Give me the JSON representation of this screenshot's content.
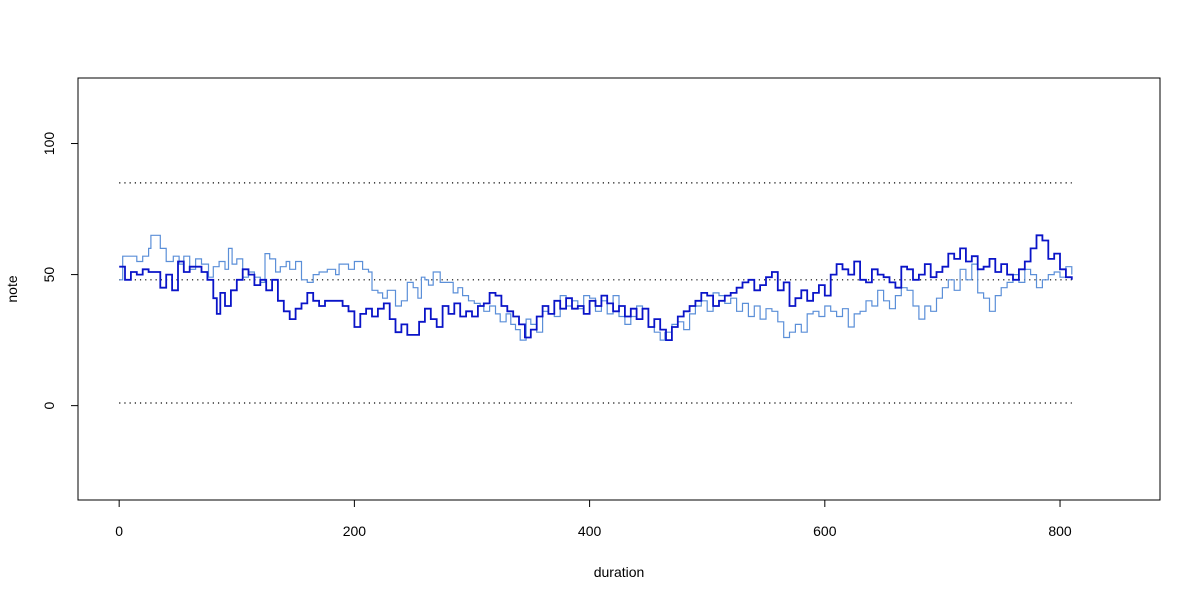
{
  "chart_data": {
    "type": "line",
    "xlabel": "duration",
    "ylabel": "note",
    "xlim": [
      -35,
      885
    ],
    "ylim": [
      -36,
      125
    ],
    "x_ticks": [
      0,
      200,
      400,
      600,
      800
    ],
    "y_ticks": [
      0,
      50,
      100
    ],
    "x_tick_labels": [
      "0",
      "200",
      "400",
      "600",
      "800"
    ],
    "y_tick_labels": [
      "0",
      "50",
      "100"
    ],
    "grid": false,
    "reference_lines": [
      {
        "y": 85,
        "x_range": [
          0,
          810
        ],
        "style": "dotted",
        "color": "#000000"
      },
      {
        "y": 48,
        "x_range": [
          0,
          810
        ],
        "style": "dotted",
        "color": "#000000"
      },
      {
        "y": 1,
        "x_range": [
          0,
          810
        ],
        "style": "dotted",
        "color": "#000000"
      }
    ],
    "series": [
      {
        "color": "#5B8FD8",
        "line_width": 1.2,
        "step": true,
        "points": [
          [
            0,
            48
          ],
          [
            3,
            57
          ],
          [
            15,
            55
          ],
          [
            20,
            57
          ],
          [
            25,
            60
          ],
          [
            27,
            65
          ],
          [
            35,
            60
          ],
          [
            40,
            55
          ],
          [
            46,
            57
          ],
          [
            51,
            54
          ],
          [
            55,
            57
          ],
          [
            60,
            52
          ],
          [
            65,
            56
          ],
          [
            70,
            54
          ],
          [
            76,
            49
          ],
          [
            80,
            53
          ],
          [
            85,
            55
          ],
          [
            90,
            52
          ],
          [
            93,
            60
          ],
          [
            96,
            54
          ],
          [
            100,
            56
          ],
          [
            105,
            49
          ],
          [
            110,
            51
          ],
          [
            115,
            49
          ],
          [
            120,
            47
          ],
          [
            124,
            58
          ],
          [
            128,
            56
          ],
          [
            133,
            51
          ],
          [
            137,
            53
          ],
          [
            142,
            55
          ],
          [
            145,
            52
          ],
          [
            150,
            55
          ],
          [
            155,
            48
          ],
          [
            160,
            47
          ],
          [
            165,
            50
          ],
          [
            170,
            51
          ],
          [
            177,
            52
          ],
          [
            184,
            50
          ],
          [
            187,
            54
          ],
          [
            195,
            52
          ],
          [
            200,
            55
          ],
          [
            207,
            52
          ],
          [
            212,
            51
          ],
          [
            215,
            44
          ],
          [
            220,
            43
          ],
          [
            224,
            41
          ],
          [
            228,
            44
          ],
          [
            235,
            38
          ],
          [
            240,
            40
          ],
          [
            245,
            47
          ],
          [
            250,
            45
          ],
          [
            254,
            41
          ],
          [
            257,
            49
          ],
          [
            260,
            48
          ],
          [
            263,
            46
          ],
          [
            267,
            51
          ],
          [
            273,
            47
          ],
          [
            280,
            47
          ],
          [
            284,
            43
          ],
          [
            288,
            45
          ],
          [
            292,
            42
          ],
          [
            297,
            40
          ],
          [
            302,
            39
          ],
          [
            307,
            38
          ],
          [
            310,
            36
          ],
          [
            315,
            38
          ],
          [
            320,
            35
          ],
          [
            324,
            32
          ],
          [
            329,
            35
          ],
          [
            333,
            31
          ],
          [
            337,
            29
          ],
          [
            341,
            25
          ],
          [
            346,
            33
          ],
          [
            350,
            31
          ],
          [
            355,
            28
          ],
          [
            360,
            36
          ],
          [
            365,
            35
          ],
          [
            370,
            34
          ],
          [
            375,
            42
          ],
          [
            380,
            38
          ],
          [
            385,
            40
          ],
          [
            390,
            37
          ],
          [
            395,
            42
          ],
          [
            400,
            41
          ],
          [
            405,
            36
          ],
          [
            410,
            40
          ],
          [
            415,
            35
          ],
          [
            420,
            42
          ],
          [
            425,
            34
          ],
          [
            430,
            31
          ],
          [
            435,
            34
          ],
          [
            440,
            38
          ],
          [
            445,
            37
          ],
          [
            450,
            30
          ],
          [
            455,
            28
          ],
          [
            460,
            25
          ],
          [
            464,
            28
          ],
          [
            470,
            31
          ],
          [
            475,
            32
          ],
          [
            480,
            29
          ],
          [
            485,
            35
          ],
          [
            490,
            38
          ],
          [
            495,
            40
          ],
          [
            500,
            36
          ],
          [
            505,
            43
          ],
          [
            510,
            42
          ],
          [
            515,
            39
          ],
          [
            520,
            41
          ],
          [
            525,
            36
          ],
          [
            530,
            39
          ],
          [
            535,
            34
          ],
          [
            540,
            38
          ],
          [
            545,
            33
          ],
          [
            550,
            37
          ],
          [
            555,
            36
          ],
          [
            560,
            32
          ],
          [
            565,
            26
          ],
          [
            570,
            28
          ],
          [
            575,
            31
          ],
          [
            580,
            28
          ],
          [
            585,
            35
          ],
          [
            590,
            36
          ],
          [
            595,
            34
          ],
          [
            600,
            38
          ],
          [
            605,
            36
          ],
          [
            610,
            34
          ],
          [
            615,
            37
          ],
          [
            620,
            30
          ],
          [
            625,
            35
          ],
          [
            630,
            36
          ],
          [
            635,
            40
          ],
          [
            640,
            38
          ],
          [
            645,
            44
          ],
          [
            650,
            40
          ],
          [
            655,
            37
          ],
          [
            660,
            42
          ],
          [
            665,
            45
          ],
          [
            670,
            44
          ],
          [
            675,
            38
          ],
          [
            680,
            33
          ],
          [
            685,
            38
          ],
          [
            690,
            36
          ],
          [
            695,
            41
          ],
          [
            700,
            45
          ],
          [
            705,
            48
          ],
          [
            710,
            44
          ],
          [
            715,
            52
          ],
          [
            720,
            48
          ],
          [
            725,
            54
          ],
          [
            730,
            43
          ],
          [
            735,
            41
          ],
          [
            740,
            36
          ],
          [
            745,
            42
          ],
          [
            750,
            45
          ],
          [
            755,
            47
          ],
          [
            760,
            50
          ],
          [
            765,
            47
          ],
          [
            770,
            52
          ],
          [
            775,
            50
          ],
          [
            780,
            45
          ],
          [
            785,
            48
          ],
          [
            790,
            50
          ],
          [
            795,
            51
          ],
          [
            800,
            49
          ],
          [
            805,
            53
          ],
          [
            810,
            50
          ]
        ]
      },
      {
        "color": "#0A14C8",
        "line_width": 1.8,
        "step": true,
        "points": [
          [
            0,
            53
          ],
          [
            5,
            48
          ],
          [
            10,
            51
          ],
          [
            15,
            50
          ],
          [
            20,
            52
          ],
          [
            25,
            51
          ],
          [
            30,
            51
          ],
          [
            35,
            45
          ],
          [
            40,
            50
          ],
          [
            45,
            44
          ],
          [
            50,
            55
          ],
          [
            55,
            51
          ],
          [
            60,
            53
          ],
          [
            65,
            53
          ],
          [
            70,
            51
          ],
          [
            75,
            48
          ],
          [
            80,
            41
          ],
          [
            83,
            35
          ],
          [
            86,
            43
          ],
          [
            90,
            38
          ],
          [
            95,
            44
          ],
          [
            100,
            48
          ],
          [
            105,
            52
          ],
          [
            110,
            50
          ],
          [
            115,
            46
          ],
          [
            120,
            48
          ],
          [
            125,
            44
          ],
          [
            130,
            48
          ],
          [
            135,
            40
          ],
          [
            140,
            36
          ],
          [
            145,
            33
          ],
          [
            150,
            37
          ],
          [
            155,
            39
          ],
          [
            160,
            43
          ],
          [
            165,
            40
          ],
          [
            170,
            38
          ],
          [
            175,
            40
          ],
          [
            180,
            40
          ],
          [
            185,
            40
          ],
          [
            190,
            38
          ],
          [
            195,
            36
          ],
          [
            200,
            30
          ],
          [
            205,
            35
          ],
          [
            210,
            37
          ],
          [
            215,
            34
          ],
          [
            220,
            37
          ],
          [
            225,
            39
          ],
          [
            230,
            33
          ],
          [
            235,
            28
          ],
          [
            240,
            31
          ],
          [
            245,
            27
          ],
          [
            250,
            27
          ],
          [
            255,
            32
          ],
          [
            260,
            37
          ],
          [
            265,
            33
          ],
          [
            270,
            30
          ],
          [
            275,
            38
          ],
          [
            280,
            35
          ],
          [
            285,
            39
          ],
          [
            290,
            34
          ],
          [
            295,
            36
          ],
          [
            300,
            34
          ],
          [
            305,
            38
          ],
          [
            310,
            39
          ],
          [
            315,
            43
          ],
          [
            320,
            42
          ],
          [
            325,
            38
          ],
          [
            330,
            36
          ],
          [
            335,
            34
          ],
          [
            340,
            31
          ],
          [
            345,
            26
          ],
          [
            350,
            29
          ],
          [
            355,
            34
          ],
          [
            360,
            38
          ],
          [
            365,
            35
          ],
          [
            370,
            40
          ],
          [
            375,
            37
          ],
          [
            380,
            41
          ],
          [
            385,
            37
          ],
          [
            390,
            38
          ],
          [
            395,
            35
          ],
          [
            400,
            40
          ],
          [
            405,
            38
          ],
          [
            410,
            42
          ],
          [
            415,
            39
          ],
          [
            420,
            36
          ],
          [
            425,
            38
          ],
          [
            430,
            34
          ],
          [
            435,
            37
          ],
          [
            440,
            33
          ],
          [
            445,
            37
          ],
          [
            450,
            30
          ],
          [
            455,
            33
          ],
          [
            460,
            29
          ],
          [
            465,
            25
          ],
          [
            470,
            30
          ],
          [
            475,
            34
          ],
          [
            480,
            36
          ],
          [
            485,
            38
          ],
          [
            490,
            40
          ],
          [
            495,
            43
          ],
          [
            500,
            42
          ],
          [
            505,
            38
          ],
          [
            510,
            40
          ],
          [
            515,
            42
          ],
          [
            520,
            43
          ],
          [
            525,
            45
          ],
          [
            530,
            47
          ],
          [
            535,
            48
          ],
          [
            540,
            44
          ],
          [
            545,
            46
          ],
          [
            550,
            49
          ],
          [
            555,
            51
          ],
          [
            560,
            44
          ],
          [
            565,
            47
          ],
          [
            570,
            38
          ],
          [
            575,
            41
          ],
          [
            580,
            44
          ],
          [
            585,
            40
          ],
          [
            590,
            43
          ],
          [
            595,
            46
          ],
          [
            600,
            42
          ],
          [
            605,
            50
          ],
          [
            610,
            54
          ],
          [
            615,
            52
          ],
          [
            620,
            50
          ],
          [
            625,
            55
          ],
          [
            630,
            48
          ],
          [
            635,
            47
          ],
          [
            640,
            52
          ],
          [
            645,
            50
          ],
          [
            650,
            49
          ],
          [
            655,
            47
          ],
          [
            660,
            45
          ],
          [
            665,
            53
          ],
          [
            670,
            52
          ],
          [
            675,
            48
          ],
          [
            680,
            50
          ],
          [
            685,
            54
          ],
          [
            690,
            49
          ],
          [
            695,
            51
          ],
          [
            700,
            53
          ],
          [
            705,
            58
          ],
          [
            710,
            56
          ],
          [
            715,
            60
          ],
          [
            720,
            55
          ],
          [
            725,
            57
          ],
          [
            730,
            52
          ],
          [
            735,
            53
          ],
          [
            740,
            56
          ],
          [
            745,
            51
          ],
          [
            750,
            54
          ],
          [
            755,
            50
          ],
          [
            760,
            48
          ],
          [
            765,
            52
          ],
          [
            770,
            55
          ],
          [
            775,
            60
          ],
          [
            780,
            65
          ],
          [
            785,
            63
          ],
          [
            790,
            56
          ],
          [
            795,
            58
          ],
          [
            800,
            52
          ],
          [
            805,
            49
          ],
          [
            810,
            48
          ]
        ]
      }
    ]
  }
}
